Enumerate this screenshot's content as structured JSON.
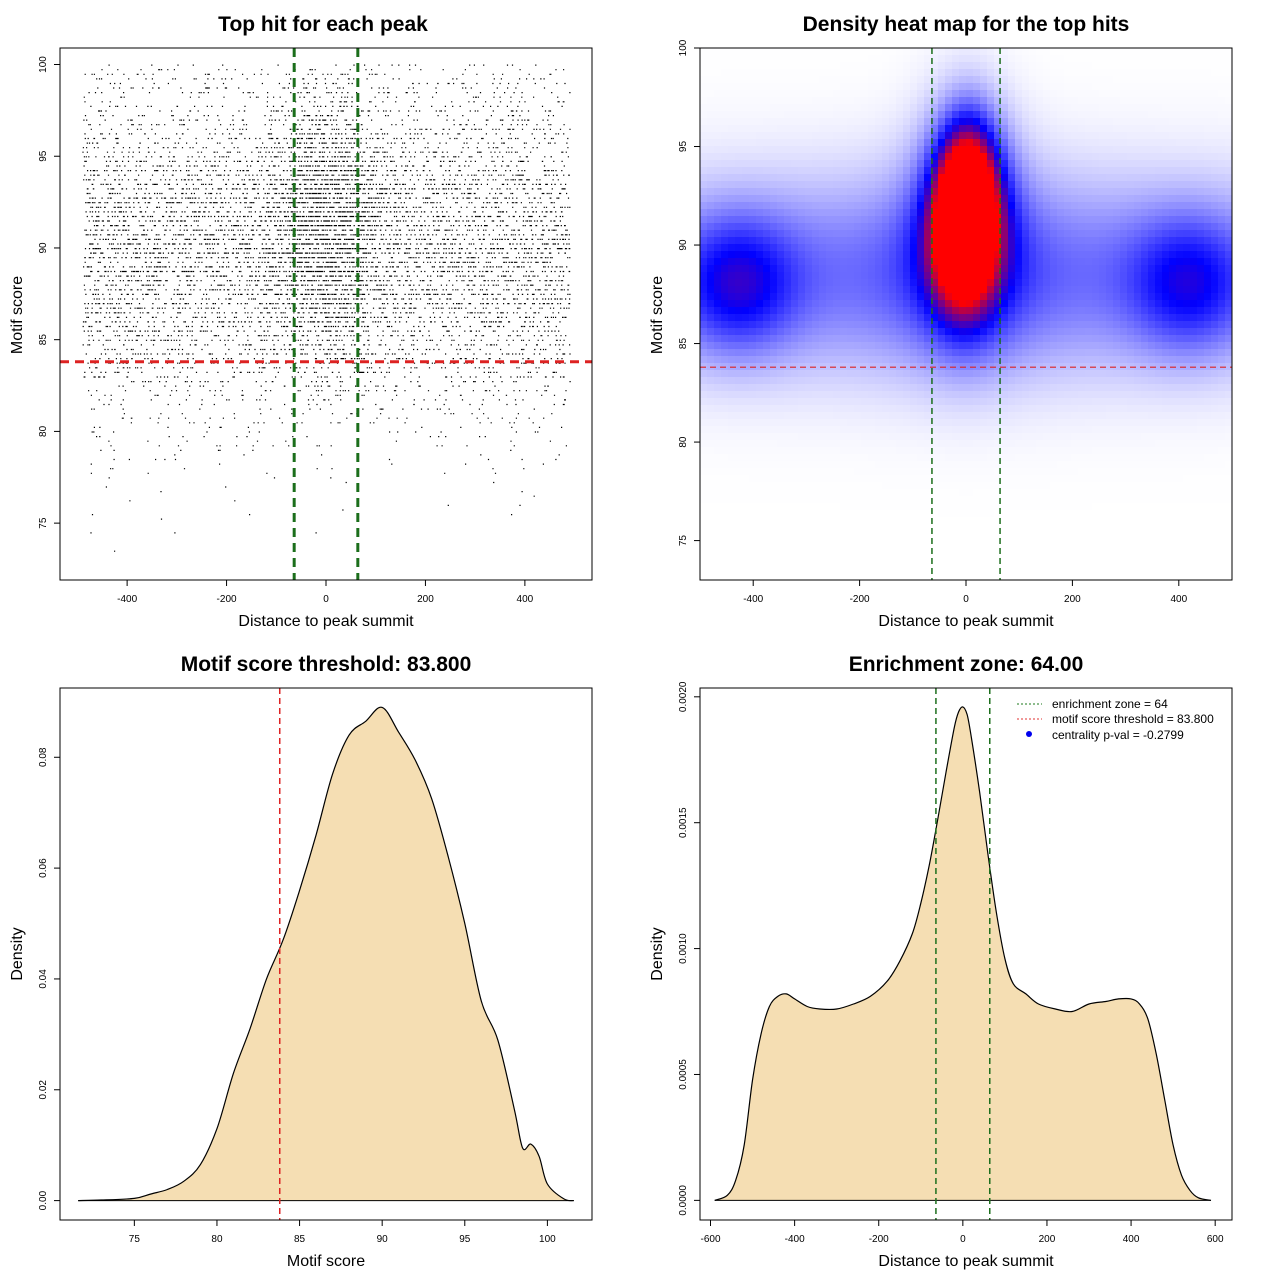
{
  "panels": {
    "scatter": {
      "title": "Top hit for each peak",
      "xlabel": "Distance to peak summit",
      "ylabel": "Motif score"
    },
    "heatmap": {
      "title": "Density heat map for the top hits",
      "xlabel": "Distance to peak summit",
      "ylabel": "Motif score"
    },
    "score_density": {
      "title": "Motif score threshold: 83.800",
      "xlabel": "Motif score",
      "ylabel": "Density"
    },
    "distance_density": {
      "title": "Enrichment zone: 64.00",
      "xlabel": "Distance to peak summit",
      "ylabel": "Density",
      "legend": [
        {
          "label": "enrichment zone = 64",
          "style": "dotted",
          "color": "#1b7a1b"
        },
        {
          "label": "motif score threshold = 83.800",
          "style": "dotted",
          "color": "#e03030"
        },
        {
          "label": "centrality p-val = -0.2799",
          "style": "point",
          "color": "#0000ee"
        }
      ]
    }
  },
  "colors": {
    "green_line": "#1b6e1b",
    "red_line": "#dd2222",
    "fill": "#f5deb3",
    "heat_low": "#ffffff",
    "heat_mid": "#0000ff",
    "heat_high": "#ff0000"
  },
  "chart_data": [
    {
      "type": "scatter",
      "title": "Top hit for each peak",
      "xlabel": "Distance to peak summit",
      "ylabel": "Motif score",
      "xlim": [
        -535,
        535
      ],
      "ylim": [
        71.9,
        100.9
      ],
      "xticks": [
        -400,
        -200,
        0,
        200,
        400
      ],
      "yticks": [
        75,
        80,
        85,
        90,
        95,
        100
      ],
      "vlines": [
        -64,
        64
      ],
      "hline": 83.8,
      "point_distribution": {
        "x_range": [
          -490,
          490
        ],
        "x_central_sd": 60,
        "y_peak": 90,
        "y_sd": 4.5,
        "y_range": [
          73,
          100
        ]
      }
    },
    {
      "type": "heatmap",
      "title": "Density heat map for the top hits",
      "xlabel": "Distance to peak summit",
      "ylabel": "Motif score",
      "xlim": [
        -500,
        500
      ],
      "ylim": [
        73,
        100
      ],
      "xticks": [
        -400,
        -200,
        0,
        200,
        400
      ],
      "yticks": [
        75,
        80,
        85,
        90,
        95,
        100
      ],
      "vlines": [
        -64,
        64
      ],
      "hline": 83.8,
      "hotspots": [
        {
          "x": 5,
          "y": 93,
          "weight": 1.0
        },
        {
          "x": -5,
          "y": 90.5,
          "weight": 1.0
        },
        {
          "x": -430,
          "y": 88,
          "weight": 0.55
        },
        {
          "x": 420,
          "y": 88,
          "weight": 0.5
        }
      ]
    },
    {
      "type": "area",
      "title": "Motif score threshold: 83.800",
      "xlabel": "Motif score",
      "ylabel": "Density",
      "xlim": [
        70.5,
        102.7
      ],
      "ylim": [
        -0.0035,
        0.0925
      ],
      "xticks": [
        75,
        80,
        85,
        90,
        95,
        100
      ],
      "yticks": [
        0,
        0.02,
        0.04,
        0.06,
        0.08
      ],
      "ytick_labels": [
        "0.00",
        "0.02",
        "0.04",
        "0.06",
        "0.08"
      ],
      "vline": 83.8,
      "x": [
        71.6,
        73,
        75,
        76,
        77,
        78,
        79,
        80,
        81,
        82,
        83,
        84,
        85,
        86,
        87,
        88,
        89,
        90,
        91,
        92,
        93,
        94,
        95,
        96,
        97,
        98,
        98.5,
        99,
        99.5,
        100,
        101,
        101.6
      ],
      "y": [
        0,
        0.0001,
        0.0004,
        0.0012,
        0.002,
        0.0035,
        0.0065,
        0.013,
        0.023,
        0.031,
        0.04,
        0.047,
        0.056,
        0.066,
        0.077,
        0.084,
        0.0865,
        0.089,
        0.0845,
        0.0795,
        0.0725,
        0.062,
        0.05,
        0.036,
        0.029,
        0.0165,
        0.0095,
        0.0102,
        0.008,
        0.003,
        0.0003,
        0
      ]
    },
    {
      "type": "area",
      "title": "Enrichment zone: 64.00",
      "xlabel": "Distance to peak summit",
      "ylabel": "Density",
      "xlim": [
        -625,
        640
      ],
      "ylim": [
        -7.8e-05,
        0.002035
      ],
      "xticks": [
        -600,
        -400,
        -200,
        0,
        200,
        400,
        600
      ],
      "yticks": [
        0,
        0.0005,
        0.001,
        0.0015,
        0.002
      ],
      "ytick_labels": [
        "0.0000",
        "0.0005",
        "0.0010",
        "0.0015",
        "0.0020"
      ],
      "vlines": [
        -64,
        64
      ],
      "x": [
        -590,
        -560,
        -540,
        -520,
        -500,
        -480,
        -460,
        -440,
        -420,
        -400,
        -370,
        -340,
        -300,
        -260,
        -220,
        -180,
        -150,
        -120,
        -100,
        -80,
        -60,
        -40,
        -20,
        -10,
        0,
        10,
        20,
        40,
        60,
        80,
        100,
        120,
        150,
        180,
        220,
        260,
        300,
        340,
        370,
        400,
        420,
        440,
        460,
        480,
        500,
        520,
        540,
        560,
        590
      ],
      "y": [
        0,
        2e-05,
        8e-05,
        0.00022,
        0.00048,
        0.00066,
        0.00077,
        0.00081,
        0.00082,
        0.0008,
        0.00077,
        0.00076,
        0.00076,
        0.00078,
        0.00081,
        0.00087,
        0.00095,
        0.00106,
        0.00118,
        0.00133,
        0.00151,
        0.0017,
        0.00188,
        0.00194,
        0.00196,
        0.00193,
        0.00184,
        0.00162,
        0.00137,
        0.00114,
        0.00096,
        0.00086,
        0.00082,
        0.00078,
        0.00076,
        0.00075,
        0.00078,
        0.00079,
        0.0008,
        0.0008,
        0.00078,
        0.00072,
        0.00058,
        0.0004,
        0.00022,
        0.0001,
        4e-05,
        1e-05,
        0
      ]
    }
  ]
}
